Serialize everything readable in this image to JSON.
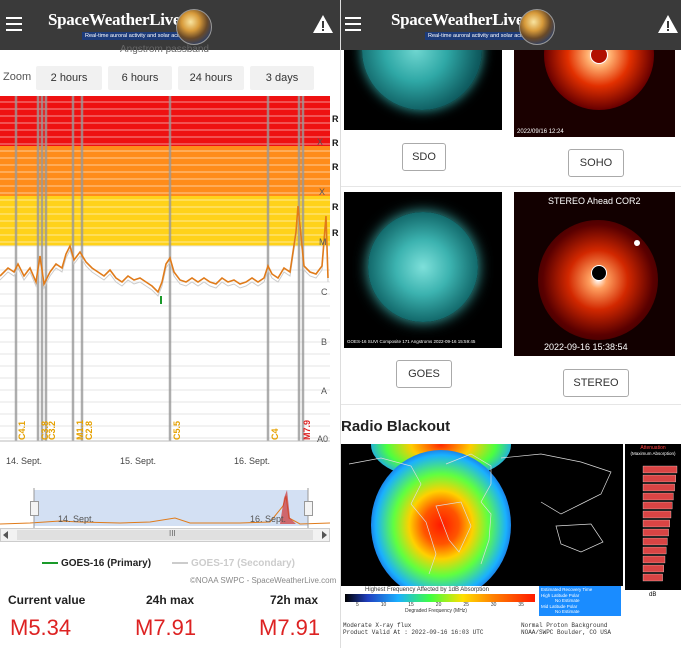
{
  "app": {
    "logo_title": "SpaceWeatherLive",
    "logo_tagline": "Real-time auroral activity and solar activity",
    "menu_icon": "menu-icon",
    "alert_icon": "warning-icon"
  },
  "left": {
    "cutoff_heading": "Angstrom passband",
    "zoom": {
      "label": "Zoom",
      "options": [
        "2 hours",
        "6 hours",
        "24 hours",
        "3 days"
      ]
    },
    "chart_data": {
      "type": "line",
      "title": "",
      "xlabel": "",
      "ylabel": "",
      "y_scale": "log",
      "y_classes": [
        "A0",
        "A",
        "B",
        "C",
        "M",
        "X"
      ],
      "x_ticks": [
        "14. Sept.",
        "15. Sept.",
        "16. Sept."
      ],
      "radio_marks": [
        "R",
        "R",
        "R",
        "R",
        "R"
      ],
      "flare_labels": [
        "C4.1",
        "C3.8",
        "C3.2",
        "M1.1",
        "C2.8",
        "C5.5",
        "C4",
        "M7.9"
      ],
      "series": [
        {
          "name": "GOES-16 (Primary)",
          "color": "#e07b1a"
        },
        {
          "name": "GOES-17 (Secondary)",
          "color": "#cccccc"
        }
      ],
      "peak_class": "M7.9"
    },
    "navigator": {
      "handle_icon": "scroll-grip-icon",
      "ticks": [
        "14. Sept.",
        "16. Sept."
      ]
    },
    "scroll": {
      "left_icon": "scroll-left-icon",
      "right_icon": "scroll-right-icon",
      "grip": "III"
    },
    "legend": {
      "primary": "GOES-16 (Primary)",
      "secondary": "GOES-17 (Secondary)"
    },
    "credit": "©NOAA SWPC - SpaceWeatherLive.com",
    "stats": [
      {
        "label": "Current value",
        "value": "M5.34"
      },
      {
        "label": "24h max",
        "value": "M7.91"
      },
      {
        "label": "72h max",
        "value": "M7.91"
      }
    ]
  },
  "right": {
    "images": {
      "sdo": {
        "button": "SDO"
      },
      "soho": {
        "button": "SOHO",
        "timestamp": "2022/09/16 12:24"
      },
      "goes": {
        "button": "GOES",
        "caption": "GOES-16 SUVI Composite 171 Angstroms 2022-09-16 15:59:45"
      },
      "stereo": {
        "button": "STEREO",
        "header": "STEREO Ahead COR2",
        "timestamp": "2022-09-16 15:38:54"
      }
    },
    "radio_blackout": {
      "title": "Radio Blackout",
      "legend_title": "Highest Frequency Affected by 1dB Absorption",
      "scale_ticks": [
        "5",
        "10",
        "15",
        "20",
        "25",
        "30",
        "35"
      ],
      "scale_axis": "Degraded Frequency (MHz)",
      "notes": [
        "Estimated Recovery Time",
        "High Latitude Polar",
        "No Estimate",
        "Mid Latitude Polar",
        "No Estimate"
      ],
      "attenuation_title": "Attenuation",
      "attenuation_sub": "(Maximum Absorption)",
      "db_label": "dB",
      "footer_left": [
        "Moderate X-ray flux",
        "Product Valid At : 2022-09-16 16:03 UTC"
      ],
      "footer_right": [
        "Normal Proton Background",
        "NOAA/SWPC Boulder, CO USA"
      ]
    }
  }
}
